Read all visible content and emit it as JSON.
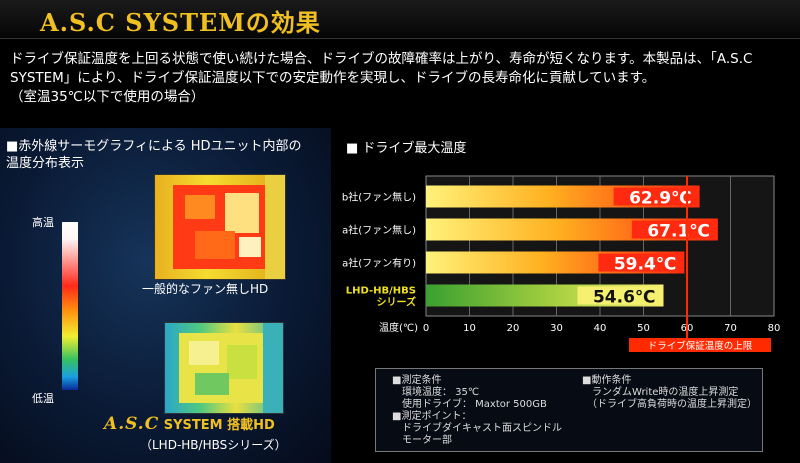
{
  "header": {
    "title": "A.S.C SYSTEMの効果"
  },
  "intro": {
    "line1": "ドライブ保証温度を上回る状態で使い続けた場合、ドライブの故障確率は上がり、寿命が短くなります。本製品は、「A.S.C",
    "line2": "SYSTEM」により、ドライブ保証温度以下での安定動作を実現し、ドライブの長寿命化に貢献しています。",
    "line3": "（室温35℃以下で使用の場合）"
  },
  "left_panel": {
    "title_line1": "■赤外線サーモグラフィによる HDユニット内部の",
    "title_line2": "温度分布表示",
    "scale_high": "高温",
    "scale_low": "低温",
    "caption_top": "一般的なファン無しHD",
    "product_logo_main": "A.S.C",
    "product_logo_rest": "SYSTEM 搭載HD",
    "caption_bottom": "（LHD-HB/HBSシリーズ）"
  },
  "right_panel": {
    "title": "■ ドライブ最大温度"
  },
  "chart_data": {
    "type": "bar",
    "orientation": "horizontal",
    "title": "ドライブ最大温度",
    "categories": [
      "b社(ファン無し)",
      "a社(ファン無し)",
      "a社(ファン有り)",
      "LHD-HB/HBS シリーズ"
    ],
    "values": [
      62.9,
      67.1,
      59.4,
      54.6
    ],
    "value_labels": [
      "62.9℃",
      "67.1℃",
      "59.4℃",
      "54.6℃"
    ],
    "xlabel": "温度(℃)",
    "xlim": [
      0,
      80
    ],
    "xticks": [
      "0",
      "10",
      "20",
      "30",
      "40",
      "50",
      "60",
      "70",
      "80"
    ],
    "grid": true,
    "reference_line": {
      "value": 60,
      "label": "ドライブ保証温度の上限",
      "color": "#ff2a00"
    },
    "bar_colors": [
      "#ff3010",
      "#ff3010",
      "#ff3010",
      "#60c030"
    ]
  },
  "notes": {
    "left": [
      "■測定条件",
      "　環境温度：  35℃",
      "　使用ドライブ：  Maxtor 500GB",
      "■測定ポイント：",
      "　ドライブダイキャスト面スピンドル",
      "　モーター部"
    ],
    "right": [
      "■動作条件",
      "　ランダムWrite時の温度上昇測定",
      "　（ドライブ高負荷時の温度上昇測定）"
    ]
  }
}
